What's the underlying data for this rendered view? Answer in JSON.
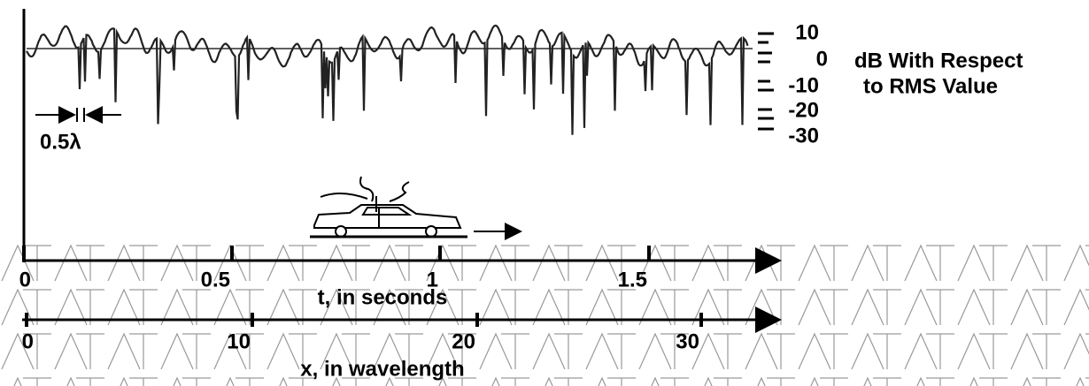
{
  "level_scale": {
    "labels": [
      "10",
      "0",
      "-10",
      "-20",
      "-30"
    ],
    "title_lines": [
      "dB With Respect",
      "to RMS Value"
    ]
  },
  "time_axis": {
    "ticks": [
      "0",
      "0.5",
      "1",
      "1.5"
    ],
    "title": "t, in seconds"
  },
  "distance_axis": {
    "ticks": [
      "0",
      "10",
      "20",
      "30"
    ],
    "title": "x, in wavelength"
  },
  "annotation": "0.5λ"
}
